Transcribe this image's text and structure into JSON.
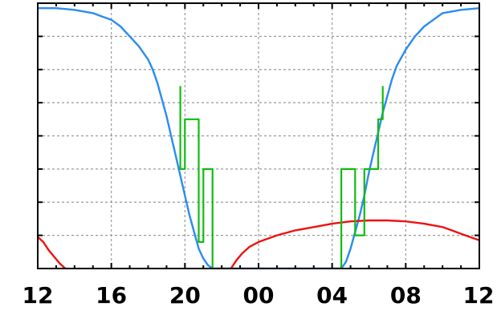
{
  "chart_data": {
    "type": "line",
    "title": "",
    "xlabel": "",
    "ylabel": "",
    "x_tick_labels": [
      "12",
      "16",
      "20",
      "00",
      "04",
      "08",
      "12"
    ],
    "x_ticks_hours": [
      12,
      16,
      20,
      24,
      28,
      32,
      36
    ],
    "xlim_hours": [
      12,
      36
    ],
    "ylim": [
      0,
      8
    ],
    "y_gridlines": [
      1,
      2,
      3,
      4,
      5,
      6,
      7
    ],
    "grid": true,
    "legend": "none",
    "series": [
      {
        "color": "#2a8cf0",
        "style": "line",
        "x_hours": [
          12.0,
          13.0,
          14.0,
          15.0,
          15.5,
          16.0,
          16.5,
          17.0,
          17.5,
          18.0,
          18.25,
          18.5,
          18.75,
          19.0,
          19.25,
          19.5,
          19.75,
          20.0,
          20.25,
          20.5,
          20.75,
          21.0,
          21.25,
          21.5,
          28.5,
          28.75,
          29.0,
          29.25,
          29.5,
          29.75,
          30.0,
          30.25,
          30.5,
          30.75,
          31.0,
          31.25,
          31.5,
          32.0,
          32.5,
          33.0,
          33.5,
          34.0,
          35.0,
          36.0
        ],
        "values": [
          7.85,
          7.85,
          7.8,
          7.7,
          7.6,
          7.5,
          7.3,
          7.0,
          6.7,
          6.3,
          6.0,
          5.6,
          5.1,
          4.6,
          4.0,
          3.4,
          2.8,
          2.2,
          1.6,
          1.1,
          0.6,
          0.3,
          0.1,
          0.0,
          0.0,
          0.2,
          0.6,
          1.1,
          1.6,
          2.2,
          2.9,
          3.5,
          4.1,
          4.7,
          5.2,
          5.7,
          6.1,
          6.6,
          7.0,
          7.3,
          7.5,
          7.7,
          7.8,
          7.85
        ]
      },
      {
        "color": "#ee1111",
        "style": "line",
        "x_hours": [
          12.0,
          12.3,
          12.6,
          12.9,
          13.2,
          13.5
        ],
        "values": [
          0.95,
          0.8,
          0.55,
          0.35,
          0.15,
          0.0
        ]
      },
      {
        "color": "#ee1111",
        "style": "line",
        "x_hours": [
          22.5,
          22.8,
          23.1,
          23.5,
          24.0,
          24.5,
          25.0,
          26.0,
          27.0,
          28.0,
          29.0,
          30.0,
          31.0,
          32.0,
          33.0,
          34.0,
          34.5,
          35.0,
          35.5,
          36.0
        ],
        "values": [
          0.0,
          0.25,
          0.45,
          0.65,
          0.8,
          0.9,
          1.0,
          1.15,
          1.25,
          1.35,
          1.42,
          1.45,
          1.45,
          1.42,
          1.35,
          1.25,
          1.15,
          1.05,
          0.95,
          0.85
        ]
      },
      {
        "color": "#11bb11",
        "style": "steps",
        "x_hours": [
          19.75,
          19.75,
          20.0,
          20.0,
          20.75,
          20.75,
          21.0,
          21.0,
          21.5,
          21.5
        ],
        "values": [
          5.5,
          3.0,
          3.0,
          4.5,
          4.5,
          0.8,
          0.8,
          3.0,
          3.0,
          0.0
        ]
      },
      {
        "color": "#11bb11",
        "style": "steps",
        "x_hours": [
          28.5,
          28.5,
          29.25,
          29.25,
          29.75,
          29.75,
          30.5,
          30.5,
          30.75,
          30.75
        ],
        "values": [
          0.0,
          3.0,
          3.0,
          1.0,
          1.0,
          3.0,
          3.0,
          4.5,
          4.5,
          5.5
        ]
      }
    ]
  }
}
